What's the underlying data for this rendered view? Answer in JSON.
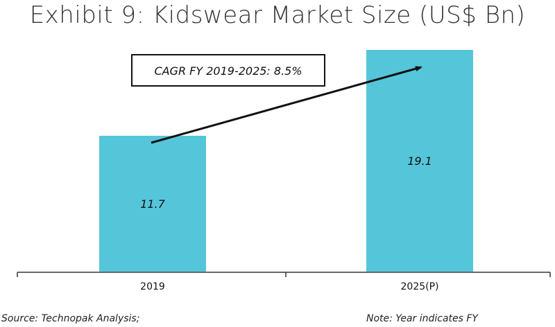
{
  "title": "Exhibit 9: Kidswear Market Size (US$ Bn)",
  "annotation": "CAGR FY 2019-2025: 8.5%",
  "source": "Source: Technopak Analysis;",
  "note": "Note: Year indicates FY",
  "colors": {
    "bar": "#55C6DA",
    "axis": "#333333",
    "arrow": "#111111"
  },
  "chart_data": {
    "type": "bar",
    "categories": [
      "2019",
      "2025(P)"
    ],
    "values": [
      11.7,
      19.1
    ],
    "data_labels": [
      "11.7",
      "19.1"
    ],
    "xlabel": "",
    "ylabel": "",
    "ylim": [
      0,
      19.1
    ],
    "grid": false,
    "legend": "none"
  }
}
